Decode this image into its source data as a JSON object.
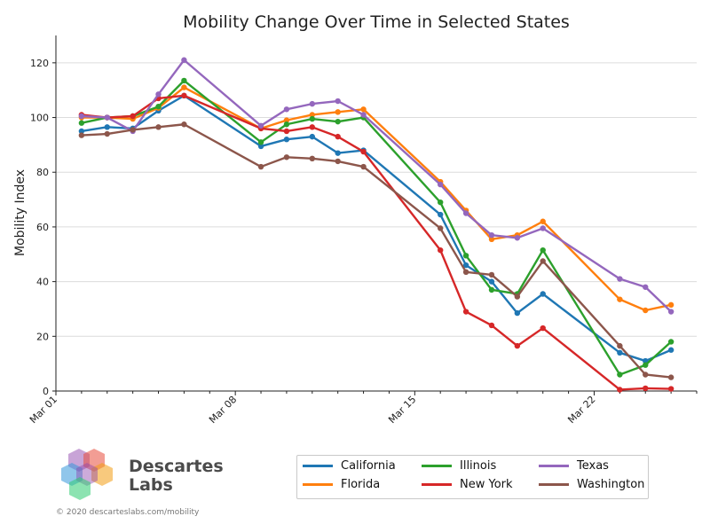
{
  "chart_data": {
    "type": "line",
    "title": "Mobility Change Over Time in Selected States",
    "xlabel": "",
    "ylabel": "Mobility Index",
    "ylim": [
      0,
      130
    ],
    "yticks": [
      0,
      20,
      40,
      60,
      80,
      100,
      120
    ],
    "xrange": [
      0,
      25
    ],
    "xticks": [
      {
        "day": 0,
        "label": "Mar 01"
      },
      {
        "day": 7,
        "label": "Mar 08"
      },
      {
        "day": 14,
        "label": "Mar 15"
      },
      {
        "day": 21,
        "label": "Mar 22"
      }
    ],
    "grid": "horizontal",
    "series": [
      {
        "name": "California",
        "color": "#1f77b4",
        "points": [
          [
            1,
            95
          ],
          [
            2,
            96.5
          ],
          [
            3,
            96
          ],
          [
            4,
            102.5
          ],
          [
            5,
            108
          ],
          [
            8,
            89.5
          ],
          [
            9,
            92
          ],
          [
            10,
            93
          ],
          [
            11,
            87
          ],
          [
            12,
            88
          ],
          [
            15,
            64.5
          ],
          [
            16,
            46
          ],
          [
            17,
            40
          ],
          [
            18,
            28.5
          ],
          [
            19,
            35.5
          ],
          [
            22,
            14
          ],
          [
            23,
            11
          ],
          [
            24,
            15
          ]
        ]
      },
      {
        "name": "Florida",
        "color": "#ff7f0e",
        "points": [
          [
            1,
            100
          ],
          [
            2,
            100
          ],
          [
            3,
            99.5
          ],
          [
            4,
            103.5
          ],
          [
            5,
            111
          ],
          [
            8,
            96
          ],
          [
            9,
            99
          ],
          [
            10,
            101
          ],
          [
            11,
            102
          ],
          [
            12,
            103
          ],
          [
            15,
            76.5
          ],
          [
            16,
            66
          ],
          [
            17,
            55.5
          ],
          [
            18,
            57
          ],
          [
            19,
            62
          ],
          [
            22,
            33.5
          ],
          [
            23,
            29.5
          ],
          [
            24,
            31.5
          ]
        ]
      },
      {
        "name": "Illinois",
        "color": "#2ca02c",
        "points": [
          [
            1,
            98
          ],
          [
            2,
            100
          ],
          [
            3,
            100.5
          ],
          [
            4,
            104
          ],
          [
            5,
            113.5
          ],
          [
            8,
            91
          ],
          [
            9,
            97.5
          ],
          [
            10,
            99.5
          ],
          [
            11,
            98.5
          ],
          [
            12,
            100
          ],
          [
            15,
            69
          ],
          [
            16,
            49.5
          ],
          [
            17,
            37
          ],
          [
            18,
            35.5
          ],
          [
            19,
            51.5
          ],
          [
            22,
            6
          ],
          [
            23,
            9.5
          ],
          [
            24,
            18
          ]
        ]
      },
      {
        "name": "New York",
        "color": "#d62728",
        "points": [
          [
            1,
            101
          ],
          [
            2,
            100
          ],
          [
            3,
            100.5
          ],
          [
            4,
            107
          ],
          [
            5,
            108
          ],
          [
            8,
            96
          ],
          [
            9,
            95
          ],
          [
            10,
            96.5
          ],
          [
            11,
            93
          ],
          [
            12,
            87.5
          ],
          [
            15,
            51.5
          ],
          [
            16,
            29
          ],
          [
            17,
            24
          ],
          [
            18,
            16.5
          ],
          [
            19,
            23
          ],
          [
            22,
            0.5
          ],
          [
            23,
            1
          ],
          [
            24,
            0.8
          ]
        ]
      },
      {
        "name": "Texas",
        "color": "#9467bd",
        "points": [
          [
            1,
            100.5
          ],
          [
            2,
            100
          ],
          [
            3,
            95
          ],
          [
            4,
            108.5
          ],
          [
            5,
            121
          ],
          [
            8,
            97
          ],
          [
            9,
            103
          ],
          [
            10,
            105
          ],
          [
            11,
            106
          ],
          [
            12,
            101
          ],
          [
            15,
            75.5
          ],
          [
            16,
            65
          ],
          [
            17,
            57
          ],
          [
            18,
            56
          ],
          [
            19,
            59.5
          ],
          [
            22,
            41
          ],
          [
            23,
            38
          ],
          [
            24,
            29
          ]
        ]
      },
      {
        "name": "Washington",
        "color": "#8c564b",
        "points": [
          [
            1,
            93.5
          ],
          [
            2,
            94
          ],
          [
            3,
            95.5
          ],
          [
            4,
            96.5
          ],
          [
            5,
            97.5
          ],
          [
            8,
            82
          ],
          [
            9,
            85.5
          ],
          [
            10,
            85
          ],
          [
            11,
            84
          ],
          [
            12,
            82
          ],
          [
            15,
            59.5
          ],
          [
            16,
            43.5
          ],
          [
            17,
            42.5
          ],
          [
            18,
            34.5
          ],
          [
            19,
            47.5
          ],
          [
            22,
            16.5
          ],
          [
            23,
            6
          ],
          [
            24,
            5
          ]
        ]
      }
    ]
  },
  "branding": {
    "name_line1": "Descartes",
    "name_line2": "Labs",
    "credit": "© 2020  descarteslabs.com/mobility"
  }
}
